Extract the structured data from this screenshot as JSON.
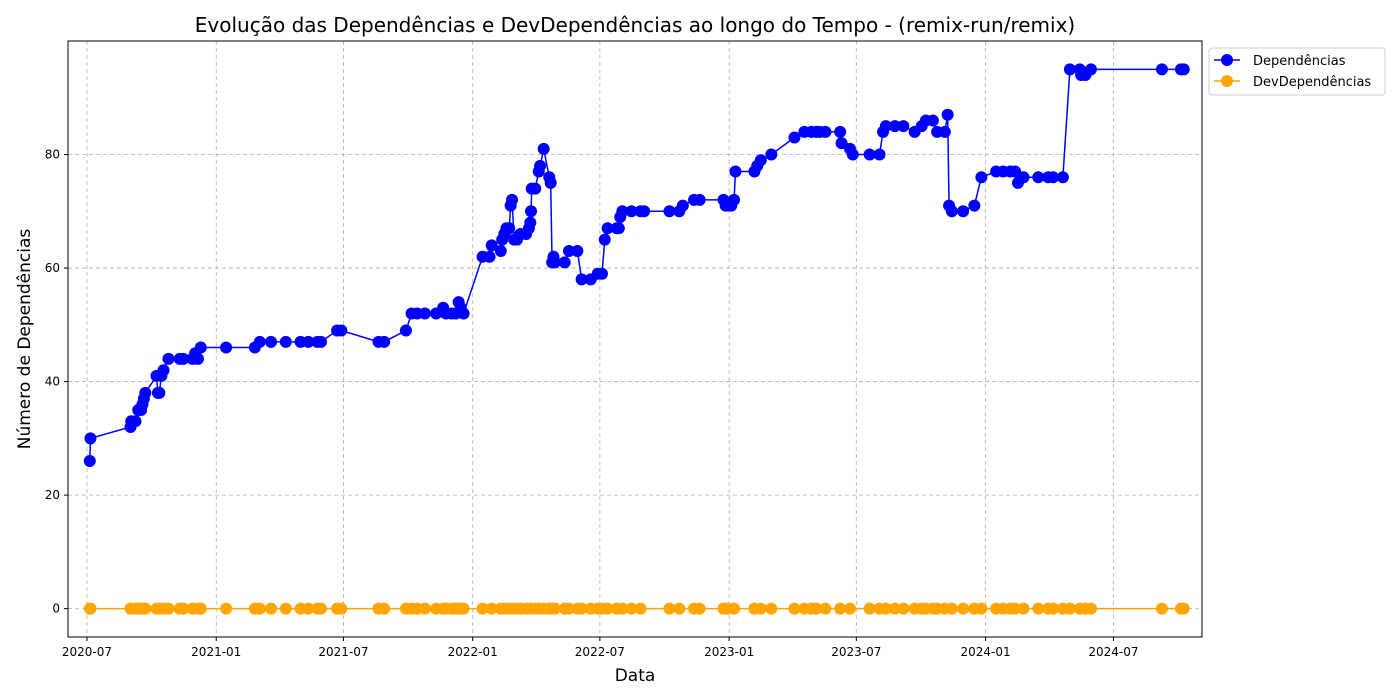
{
  "chart_data": {
    "type": "line",
    "title": "Evolução das Dependências e DevDependências ao longo do Tempo - (remix-run/remix)",
    "xlabel": "Data",
    "ylabel": "Número de Dependências",
    "x_ticks": [
      "2020-07",
      "2021-01",
      "2021-07",
      "2022-01",
      "2022-07",
      "2023-01",
      "2023-07",
      "2024-01",
      "2024-07"
    ],
    "y_ticks": [
      0,
      20,
      40,
      60,
      80
    ],
    "xlim": [
      "2020-06-04",
      "2024-11-04"
    ],
    "ylim": [
      -5,
      100
    ],
    "grid": true,
    "legend_position": "outside-top-right",
    "colors": {
      "Dependências": "#0000ff",
      "DevDependências": "#ffa500"
    },
    "series": [
      {
        "name": "Dependências",
        "points": [
          [
            "2020-07-05",
            26
          ],
          [
            "2020-07-06",
            30
          ],
          [
            "2020-09-01",
            32
          ],
          [
            "2020-09-02",
            33
          ],
          [
            "2020-09-08",
            33
          ],
          [
            "2020-09-12",
            35
          ],
          [
            "2020-09-16",
            35
          ],
          [
            "2020-09-18",
            36
          ],
          [
            "2020-09-20",
            37
          ],
          [
            "2020-09-22",
            38
          ],
          [
            "2020-10-08",
            41
          ],
          [
            "2020-10-10",
            38
          ],
          [
            "2020-10-12",
            38
          ],
          [
            "2020-10-15",
            41
          ],
          [
            "2020-10-18",
            42
          ],
          [
            "2020-10-25",
            44
          ],
          [
            "2020-11-10",
            44
          ],
          [
            "2020-11-15",
            44
          ],
          [
            "2020-11-28",
            44
          ],
          [
            "2020-12-02",
            45
          ],
          [
            "2020-12-06",
            44
          ],
          [
            "2020-12-10",
            46
          ],
          [
            "2021-01-15",
            46
          ],
          [
            "2021-02-25",
            46
          ],
          [
            "2021-03-04",
            47
          ],
          [
            "2021-03-20",
            47
          ],
          [
            "2021-04-10",
            47
          ],
          [
            "2021-05-01",
            47
          ],
          [
            "2021-05-12",
            47
          ],
          [
            "2021-05-25",
            47
          ],
          [
            "2021-05-30",
            47
          ],
          [
            "2021-06-22",
            49
          ],
          [
            "2021-06-28",
            49
          ],
          [
            "2021-08-20",
            47
          ],
          [
            "2021-08-28",
            47
          ],
          [
            "2021-09-28",
            49
          ],
          [
            "2021-10-06",
            52
          ],
          [
            "2021-10-14",
            52
          ],
          [
            "2021-10-25",
            52
          ],
          [
            "2021-11-10",
            52
          ],
          [
            "2021-11-20",
            53
          ],
          [
            "2021-11-24",
            52
          ],
          [
            "2021-12-02",
            52
          ],
          [
            "2021-12-08",
            52
          ],
          [
            "2021-12-12",
            54
          ],
          [
            "2021-12-15",
            53
          ],
          [
            "2021-12-19",
            52
          ],
          [
            "2022-01-15",
            62
          ],
          [
            "2022-01-25",
            62
          ],
          [
            "2022-01-28",
            64
          ],
          [
            "2022-02-10",
            63
          ],
          [
            "2022-02-12",
            65
          ],
          [
            "2022-02-15",
            66
          ],
          [
            "2022-02-18",
            67
          ],
          [
            "2022-02-22",
            67
          ],
          [
            "2022-02-24",
            71
          ],
          [
            "2022-02-26",
            72
          ],
          [
            "2022-03-01",
            65
          ],
          [
            "2022-03-05",
            65
          ],
          [
            "2022-03-10",
            66
          ],
          [
            "2022-03-18",
            66
          ],
          [
            "2022-03-22",
            67
          ],
          [
            "2022-03-24",
            68
          ],
          [
            "2022-03-25",
            70
          ],
          [
            "2022-03-26",
            74
          ],
          [
            "2022-03-31",
            74
          ],
          [
            "2022-04-05",
            77
          ],
          [
            "2022-04-07",
            78
          ],
          [
            "2022-04-12",
            81
          ],
          [
            "2022-04-20",
            76
          ],
          [
            "2022-04-22",
            75
          ],
          [
            "2022-04-24",
            61
          ],
          [
            "2022-04-26",
            62
          ],
          [
            "2022-04-28",
            61
          ],
          [
            "2022-05-12",
            61
          ],
          [
            "2022-05-18",
            63
          ],
          [
            "2022-05-30",
            63
          ],
          [
            "2022-06-05",
            58
          ],
          [
            "2022-06-18",
            58
          ],
          [
            "2022-06-28",
            59
          ],
          [
            "2022-07-04",
            59
          ],
          [
            "2022-07-08",
            65
          ],
          [
            "2022-07-12",
            67
          ],
          [
            "2022-07-25",
            67
          ],
          [
            "2022-07-28",
            67
          ],
          [
            "2022-07-30",
            69
          ],
          [
            "2022-08-02",
            70
          ],
          [
            "2022-08-15",
            70
          ],
          [
            "2022-08-28",
            70
          ],
          [
            "2022-09-02",
            70
          ],
          [
            "2022-10-08",
            70
          ],
          [
            "2022-10-22",
            70
          ],
          [
            "2022-10-27",
            71
          ],
          [
            "2022-11-12",
            72
          ],
          [
            "2022-11-20",
            72
          ],
          [
            "2022-12-24",
            72
          ],
          [
            "2022-12-27",
            71
          ],
          [
            "2022-12-30",
            71
          ],
          [
            "2023-01-04",
            71
          ],
          [
            "2023-01-08",
            72
          ],
          [
            "2023-01-10",
            77
          ],
          [
            "2023-02-06",
            77
          ],
          [
            "2023-02-10",
            78
          ],
          [
            "2023-02-15",
            79
          ],
          [
            "2023-03-02",
            80
          ],
          [
            "2023-04-04",
            83
          ],
          [
            "2023-04-18",
            84
          ],
          [
            "2023-04-28",
            84
          ],
          [
            "2023-05-05",
            84
          ],
          [
            "2023-05-10",
            84
          ],
          [
            "2023-05-18",
            84
          ],
          [
            "2023-06-08",
            84
          ],
          [
            "2023-06-10",
            82
          ],
          [
            "2023-06-22",
            81
          ],
          [
            "2023-06-26",
            80
          ],
          [
            "2023-07-20",
            80
          ],
          [
            "2023-08-03",
            80
          ],
          [
            "2023-08-08",
            84
          ],
          [
            "2023-08-12",
            85
          ],
          [
            "2023-08-25",
            85
          ],
          [
            "2023-09-06",
            85
          ],
          [
            "2023-09-22",
            84
          ],
          [
            "2023-10-02",
            85
          ],
          [
            "2023-10-08",
            86
          ],
          [
            "2023-10-18",
            86
          ],
          [
            "2023-10-24",
            84
          ],
          [
            "2023-11-04",
            84
          ],
          [
            "2023-11-08",
            87
          ],
          [
            "2023-11-10",
            71
          ],
          [
            "2023-11-14",
            70
          ],
          [
            "2023-11-30",
            70
          ],
          [
            "2023-12-16",
            71
          ],
          [
            "2023-12-26",
            76
          ],
          [
            "2024-01-16",
            77
          ],
          [
            "2024-01-26",
            77
          ],
          [
            "2024-02-05",
            77
          ],
          [
            "2024-02-12",
            77
          ],
          [
            "2024-02-16",
            75
          ],
          [
            "2024-02-24",
            76
          ],
          [
            "2024-03-16",
            76
          ],
          [
            "2024-03-30",
            76
          ],
          [
            "2024-04-06",
            76
          ],
          [
            "2024-04-20",
            76
          ],
          [
            "2024-04-30",
            95
          ],
          [
            "2024-05-14",
            95
          ],
          [
            "2024-05-16",
            94
          ],
          [
            "2024-05-22",
            94
          ],
          [
            "2024-05-30",
            95
          ],
          [
            "2024-09-08",
            95
          ],
          [
            "2024-10-05",
            95
          ],
          [
            "2024-10-09",
            95
          ]
        ]
      },
      {
        "name": "DevDependências",
        "points": [
          [
            "2020-07-05",
            0
          ],
          [
            "2020-07-06",
            0
          ],
          [
            "2020-09-01",
            0
          ],
          [
            "2020-09-02",
            0
          ],
          [
            "2020-09-08",
            0
          ],
          [
            "2020-09-12",
            0
          ],
          [
            "2020-09-16",
            0
          ],
          [
            "2020-09-18",
            0
          ],
          [
            "2020-09-20",
            0
          ],
          [
            "2020-09-22",
            0
          ],
          [
            "2020-10-08",
            0
          ],
          [
            "2020-10-12",
            0
          ],
          [
            "2020-10-18",
            0
          ],
          [
            "2020-10-25",
            0
          ],
          [
            "2020-11-10",
            0
          ],
          [
            "2020-11-15",
            0
          ],
          [
            "2020-11-28",
            0
          ],
          [
            "2020-12-06",
            0
          ],
          [
            "2020-12-10",
            0
          ],
          [
            "2021-01-15",
            0
          ],
          [
            "2021-02-25",
            0
          ],
          [
            "2021-03-04",
            0
          ],
          [
            "2021-03-20",
            0
          ],
          [
            "2021-04-10",
            0
          ],
          [
            "2021-05-01",
            0
          ],
          [
            "2021-05-12",
            0
          ],
          [
            "2021-05-25",
            0
          ],
          [
            "2021-05-30",
            0
          ],
          [
            "2021-06-22",
            0
          ],
          [
            "2021-06-28",
            0
          ],
          [
            "2021-08-20",
            0
          ],
          [
            "2021-08-28",
            0
          ],
          [
            "2021-09-28",
            0
          ],
          [
            "2021-10-06",
            0
          ],
          [
            "2021-10-14",
            0
          ],
          [
            "2021-10-25",
            0
          ],
          [
            "2021-11-10",
            0
          ],
          [
            "2021-11-20",
            0
          ],
          [
            "2021-11-24",
            0
          ],
          [
            "2021-12-02",
            0
          ],
          [
            "2021-12-08",
            0
          ],
          [
            "2021-12-12",
            0
          ],
          [
            "2021-12-15",
            0
          ],
          [
            "2021-12-19",
            0
          ],
          [
            "2022-01-15",
            0
          ],
          [
            "2022-01-28",
            0
          ],
          [
            "2022-02-10",
            0
          ],
          [
            "2022-02-15",
            0
          ],
          [
            "2022-02-22",
            0
          ],
          [
            "2022-02-26",
            0
          ],
          [
            "2022-03-05",
            0
          ],
          [
            "2022-03-10",
            0
          ],
          [
            "2022-03-18",
            0
          ],
          [
            "2022-03-24",
            0
          ],
          [
            "2022-03-31",
            0
          ],
          [
            "2022-04-05",
            0
          ],
          [
            "2022-04-12",
            0
          ],
          [
            "2022-04-20",
            0
          ],
          [
            "2022-04-24",
            0
          ],
          [
            "2022-04-28",
            0
          ],
          [
            "2022-05-12",
            0
          ],
          [
            "2022-05-18",
            0
          ],
          [
            "2022-05-30",
            0
          ],
          [
            "2022-06-05",
            0
          ],
          [
            "2022-06-18",
            0
          ],
          [
            "2022-06-28",
            0
          ],
          [
            "2022-07-04",
            0
          ],
          [
            "2022-07-12",
            0
          ],
          [
            "2022-07-25",
            0
          ],
          [
            "2022-08-02",
            0
          ],
          [
            "2022-08-15",
            0
          ],
          [
            "2022-08-28",
            0
          ],
          [
            "2022-10-08",
            0
          ],
          [
            "2022-10-22",
            0
          ],
          [
            "2022-11-12",
            0
          ],
          [
            "2022-11-20",
            0
          ],
          [
            "2022-12-24",
            0
          ],
          [
            "2022-12-30",
            0
          ],
          [
            "2023-01-08",
            0
          ],
          [
            "2023-02-06",
            0
          ],
          [
            "2023-02-15",
            0
          ],
          [
            "2023-03-02",
            0
          ],
          [
            "2023-04-04",
            0
          ],
          [
            "2023-04-18",
            0
          ],
          [
            "2023-04-28",
            0
          ],
          [
            "2023-05-05",
            0
          ],
          [
            "2023-05-18",
            0
          ],
          [
            "2023-06-08",
            0
          ],
          [
            "2023-06-22",
            0
          ],
          [
            "2023-07-20",
            0
          ],
          [
            "2023-08-03",
            0
          ],
          [
            "2023-08-12",
            0
          ],
          [
            "2023-08-25",
            0
          ],
          [
            "2023-09-06",
            0
          ],
          [
            "2023-09-22",
            0
          ],
          [
            "2023-10-02",
            0
          ],
          [
            "2023-10-08",
            0
          ],
          [
            "2023-10-18",
            0
          ],
          [
            "2023-10-24",
            0
          ],
          [
            "2023-11-04",
            0
          ],
          [
            "2023-11-14",
            0
          ],
          [
            "2023-11-30",
            0
          ],
          [
            "2023-12-16",
            0
          ],
          [
            "2023-12-26",
            0
          ],
          [
            "2024-01-16",
            0
          ],
          [
            "2024-01-26",
            0
          ],
          [
            "2024-02-05",
            0
          ],
          [
            "2024-02-12",
            0
          ],
          [
            "2024-02-24",
            0
          ],
          [
            "2024-03-16",
            0
          ],
          [
            "2024-03-30",
            0
          ],
          [
            "2024-04-06",
            0
          ],
          [
            "2024-04-20",
            0
          ],
          [
            "2024-04-30",
            0
          ],
          [
            "2024-05-14",
            0
          ],
          [
            "2024-05-22",
            0
          ],
          [
            "2024-05-30",
            0
          ],
          [
            "2024-09-08",
            0
          ],
          [
            "2024-10-05",
            0
          ],
          [
            "2024-10-09",
            0
          ]
        ]
      }
    ]
  }
}
